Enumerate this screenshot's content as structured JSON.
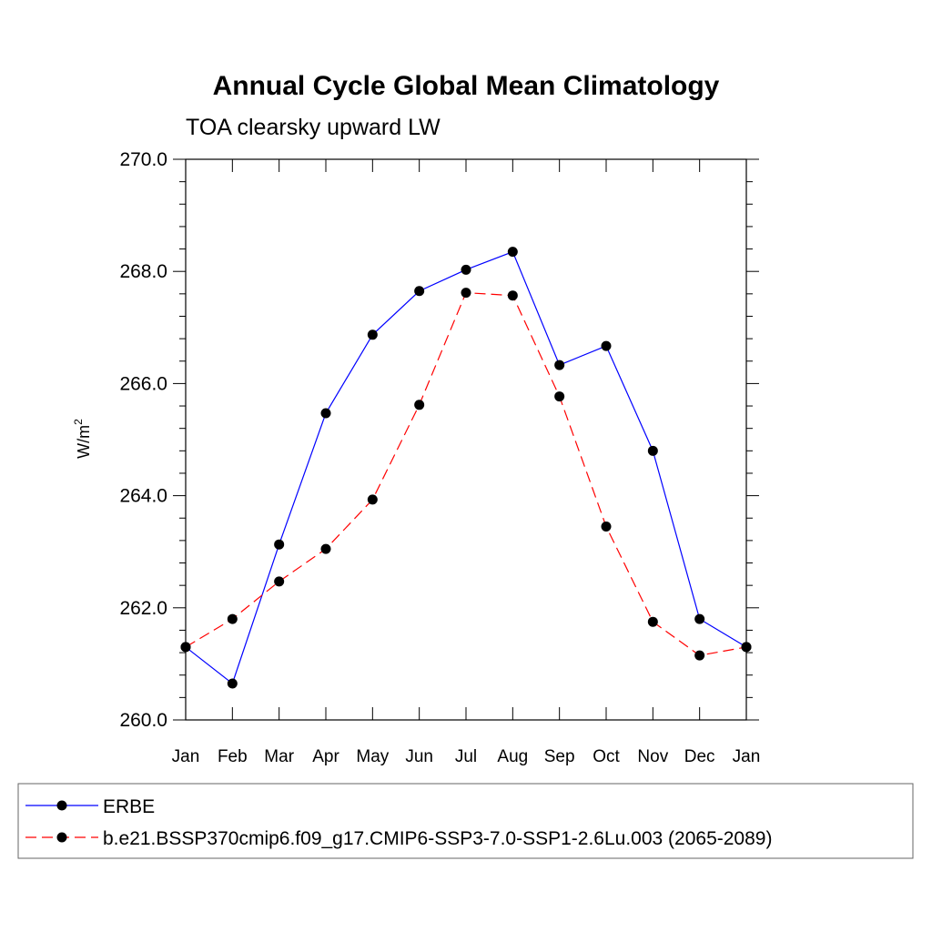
{
  "chart_data": {
    "type": "line",
    "title": "Annual Cycle Global Mean Climatology",
    "subtitle": "TOA clearsky upward LW",
    "ylabel": "W/m",
    "ylabel_superscript": "2",
    "xlabel": "",
    "categories": [
      "Jan",
      "Feb",
      "Mar",
      "Apr",
      "May",
      "Jun",
      "Jul",
      "Aug",
      "Sep",
      "Oct",
      "Nov",
      "Dec",
      "Jan"
    ],
    "ylim": [
      260.0,
      270.0
    ],
    "yticks": [
      "260.0",
      "262.0",
      "264.0",
      "266.0",
      "268.0",
      "270.0"
    ],
    "grid": false,
    "legend_position": "bottom",
    "series": [
      {
        "name": "ERBE",
        "color": "#0000ff",
        "style": "solid",
        "values": [
          261.3,
          260.65,
          263.13,
          265.47,
          266.87,
          267.65,
          268.03,
          268.35,
          266.33,
          266.67,
          264.8,
          261.8,
          261.3
        ]
      },
      {
        "name": "b.e21.BSSP370cmip6.f09_g17.CMIP6-SSP3-7.0-SSP1-2.6Lu.003 (2065-2089)",
        "color": "#ff0000",
        "style": "dashed",
        "values": [
          261.3,
          261.8,
          262.47,
          263.05,
          263.93,
          265.62,
          267.62,
          267.57,
          265.77,
          263.45,
          261.75,
          261.15,
          261.3
        ]
      }
    ]
  }
}
